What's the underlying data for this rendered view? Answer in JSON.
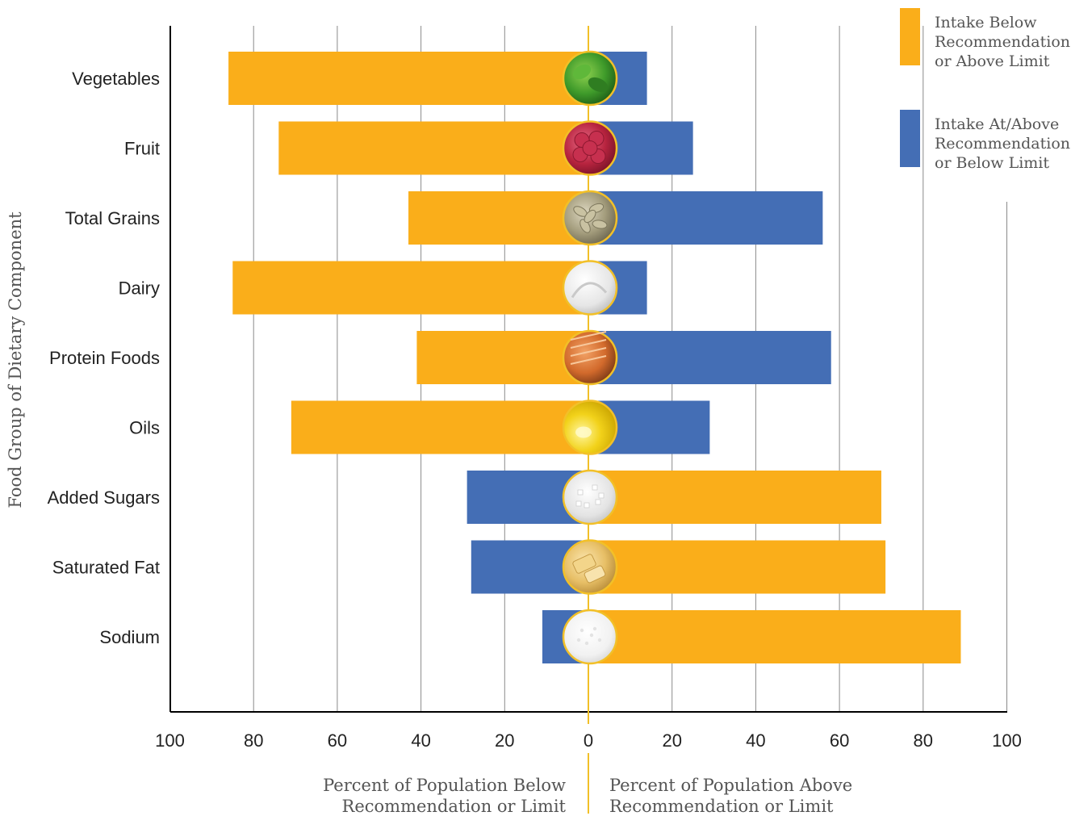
{
  "chart_data": {
    "type": "bar",
    "orientation": "horizontal-diverging",
    "ylabel": "Food Group of Dietary Component",
    "xlabel_left": [
      "Percent of Population Below",
      "Recommendation or Limit"
    ],
    "xlabel_right": [
      "Percent of Population Above",
      "Recommendation or Limit"
    ],
    "xlim": [
      -100,
      100
    ],
    "tick_labels": [
      "100",
      "80",
      "60",
      "40",
      "20",
      "0",
      "20",
      "40",
      "60",
      "80",
      "100"
    ],
    "grid": true,
    "legend_position": "top-right",
    "legend": [
      {
        "name": [
          "Intake Below",
          "Recommendation",
          "or Above Limit"
        ],
        "color": "#FAAE1A"
      },
      {
        "name": [
          "Intake At/Above",
          "Recommendation",
          "or Below Limit"
        ],
        "color": "#446EB5"
      }
    ],
    "categories": [
      "Vegetables",
      "Fruit",
      "Total Grains",
      "Dairy",
      "Protein Foods",
      "Oils",
      "Added Sugars",
      "Saturated Fat",
      "Sodium"
    ],
    "series": [
      {
        "side": "left",
        "values": [
          86,
          74,
          43,
          85,
          41,
          71,
          29,
          28,
          11
        ]
      },
      {
        "side": "right",
        "values": [
          14,
          25,
          56,
          14,
          58,
          29,
          70,
          71,
          89
        ]
      }
    ],
    "left_colors": [
      "#FAAE1A",
      "#FAAE1A",
      "#FAAE1A",
      "#FAAE1A",
      "#FAAE1A",
      "#FAAE1A",
      "#446EB5",
      "#446EB5",
      "#446EB5"
    ],
    "right_colors": [
      "#446EB5",
      "#446EB5",
      "#446EB5",
      "#446EB5",
      "#446EB5",
      "#446EB5",
      "#FAAE1A",
      "#FAAE1A",
      "#FAAE1A"
    ],
    "icons": [
      "spinach-icon",
      "raspberry-icon",
      "oats-icon",
      "milk-icon",
      "salmon-icon",
      "oil-icon",
      "sugar-icon",
      "butter-icon",
      "salt-icon"
    ]
  }
}
